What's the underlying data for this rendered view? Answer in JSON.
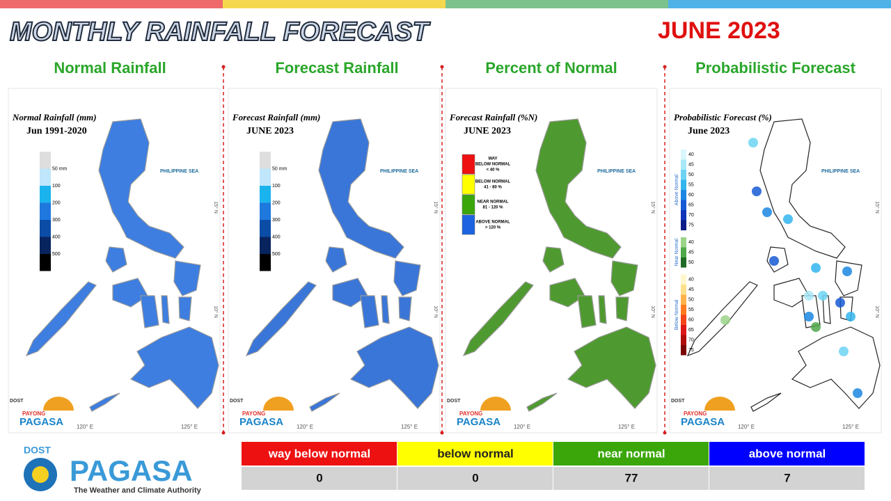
{
  "header": {
    "title": "MONTHLY RAINFALL FORECAST",
    "period": "JUNE 2023"
  },
  "map_labels": {
    "sea": "PHILIPPINE SEA",
    "lat": [
      "15° N",
      "10° N"
    ],
    "lon": [
      "120° E",
      "125° E"
    ]
  },
  "panels": [
    {
      "heading": "Normal Rainfall",
      "map_title": "Normal Rainfall (mm)",
      "map_subtitle": "Jun 1991-2020",
      "map_color": "#3d7ee0",
      "legend_type": "scale",
      "legend": [
        {
          "label": "50 mm",
          "color": "#dedede"
        },
        {
          "label": "100",
          "color": "#bfe6fb"
        },
        {
          "label": "200",
          "color": "#1bb3ee"
        },
        {
          "label": "300",
          "color": "#1f78de"
        },
        {
          "label": "400",
          "color": "#0b4ca6"
        },
        {
          "label": "500",
          "color": "#08245e"
        },
        {
          "label": null,
          "color": "#000000"
        }
      ]
    },
    {
      "heading": "Forecast Rainfall",
      "map_title": "Forecast Rainfall (mm)",
      "map_subtitle": "JUNE 2023",
      "map_color": "#3a76d8",
      "legend_type": "scale",
      "legend": [
        {
          "label": "50 mm",
          "color": "#dedede"
        },
        {
          "label": "100",
          "color": "#bfe6fb"
        },
        {
          "label": "200",
          "color": "#1bb3ee"
        },
        {
          "label": "300",
          "color": "#1f78de"
        },
        {
          "label": "400",
          "color": "#0b4ca6"
        },
        {
          "label": "500",
          "color": "#08245e"
        },
        {
          "label": null,
          "color": "#000000"
        }
      ]
    },
    {
      "heading": "Percent of Normal",
      "map_title": "Forecast Rainfall (%N)",
      "map_subtitle": "JUNE 2023",
      "map_color": "#4f9a30",
      "legend_type": "classes",
      "legend": [
        {
          "lines": [
            "WAY",
            "BELOW NORMAL",
            "< 40 %"
          ],
          "color": "#ee1111"
        },
        {
          "lines": [
            "BELOW NORMAL",
            "41 - 80 %"
          ],
          "color": "#ffff00"
        },
        {
          "lines": [
            "NEAR NORMAL",
            "81 - 120 %"
          ],
          "color": "#3aa60a"
        },
        {
          "lines": [
            "ABOVE NORMAL",
            "> 120 %"
          ],
          "color": "#1b63e0"
        }
      ]
    },
    {
      "heading": "Probabilistic Forecast",
      "map_title": "Probabilistic Forecast (%)",
      "map_subtitle": "June 2023",
      "map_color": "#ffffff",
      "legend_type": "groups",
      "legend": [
        {
          "group": "Above Normal",
          "items": [
            {
              "label": "40",
              "color": "#d9f6fb"
            },
            {
              "label": "45",
              "color": "#a8e8f8"
            },
            {
              "label": "50",
              "color": "#6dd3f3"
            },
            {
              "label": "55",
              "color": "#33b5ee"
            },
            {
              "label": "60",
              "color": "#1b87e2"
            },
            {
              "label": "65",
              "color": "#1659d4"
            },
            {
              "label": "70",
              "color": "#1133b8"
            },
            {
              "label": "75",
              "color": "#0a1d88"
            }
          ]
        },
        {
          "group": "Near Normal",
          "items": [
            {
              "label": "40",
              "color": "#9bd48a"
            },
            {
              "label": "45",
              "color": "#4fa84a"
            },
            {
              "label": "50",
              "color": "#1f6a27"
            }
          ]
        },
        {
          "group": "Below Normal",
          "items": [
            {
              "label": "40",
              "color": "#fff6cc"
            },
            {
              "label": "45",
              "color": "#ffe08a"
            },
            {
              "label": "50",
              "color": "#ffb24a"
            },
            {
              "label": "55",
              "color": "#ff7a1f"
            },
            {
              "label": "60",
              "color": "#f4441a"
            },
            {
              "label": "65",
              "color": "#dd1717"
            },
            {
              "label": "70",
              "color": "#b00c0c"
            },
            {
              "label": "75",
              "color": "#7a0505"
            }
          ]
        }
      ]
    }
  ],
  "small_logo": {
    "agency": "DOST",
    "program": "PAYONG",
    "name": "PAGASA"
  },
  "table": {
    "headers": [
      "way below normal",
      "below normal",
      "near normal",
      "above normal"
    ],
    "header_colors": [
      "#ee1111",
      "#ffff00",
      "#3aa60a",
      "#0000ff"
    ],
    "values": [
      0,
      0,
      77,
      7
    ]
  },
  "logo": {
    "agency": "DOST",
    "name": "PAGASA",
    "tagline": "The Weather and Climate Authority"
  }
}
